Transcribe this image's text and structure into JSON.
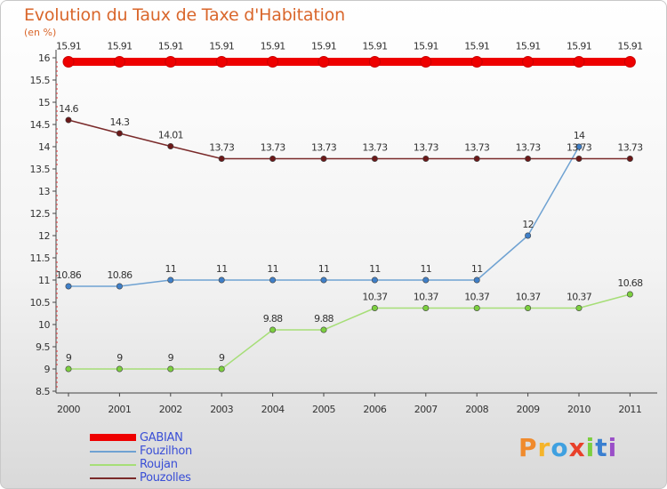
{
  "chart_data": {
    "type": "line",
    "title": "Evolution du Taux de Taxe d'Habitation",
    "unit_label": "(en %)",
    "x": [
      "2000",
      "2001",
      "2002",
      "2003",
      "2004",
      "2005",
      "2006",
      "2007",
      "2008",
      "2009",
      "2010",
      "2011"
    ],
    "ylim": [
      8.5,
      16
    ],
    "yticks": [
      8.5,
      9,
      9.5,
      10,
      10.5,
      11,
      11.5,
      12,
      12.5,
      13,
      13.5,
      14,
      14.5,
      15,
      15.5,
      16
    ],
    "ytick_labels": [
      "8.5",
      "9",
      "9.5",
      "10",
      "10.5",
      "11",
      "11.5",
      "12",
      "12.5",
      "13",
      "13.5",
      "14",
      "14.5",
      "15",
      "15.5",
      "16"
    ],
    "grid": false,
    "legend_position": "bottom-left",
    "series": [
      {
        "name": "GABIAN",
        "color": "#ee0000",
        "thick": true,
        "values": [
          15.91,
          15.91,
          15.91,
          15.91,
          15.91,
          15.91,
          15.91,
          15.91,
          15.91,
          15.91,
          15.91,
          15.91
        ],
        "labels": [
          "15.91",
          "15.91",
          "15.91",
          "15.91",
          "15.91",
          "15.91",
          "15.91",
          "15.91",
          "15.91",
          "15.91",
          "15.91",
          "15.91"
        ]
      },
      {
        "name": "Fouzilhon",
        "color": "#6fa2d2",
        "marker_color": "#3f7fc8",
        "thick": false,
        "values": [
          10.86,
          10.86,
          11,
          11,
          11,
          11,
          11,
          11,
          11,
          12,
          14,
          null
        ],
        "labels": [
          "10.86",
          "10.86",
          "11",
          "11",
          "11",
          "11",
          "11",
          "11",
          "11",
          "12",
          "14",
          ""
        ]
      },
      {
        "name": "Roujan",
        "color": "#a6de77",
        "marker_color": "#7ccf3f",
        "thick": false,
        "values": [
          9,
          9,
          9,
          9,
          9.88,
          9.88,
          10.37,
          10.37,
          10.37,
          10.37,
          10.37,
          10.68
        ],
        "labels": [
          "9",
          "9",
          "9",
          "9",
          "9.88",
          "9.88",
          "10.37",
          "10.37",
          "10.37",
          "10.37",
          "10.37",
          "10.68"
        ]
      },
      {
        "name": "Pouzolles",
        "color": "#7a2a2a",
        "marker_color": "#6b1818",
        "thick": false,
        "values": [
          14.6,
          14.3,
          14.01,
          13.73,
          13.73,
          13.73,
          13.73,
          13.73,
          13.73,
          13.73,
          13.73,
          13.73
        ],
        "labels": [
          "14.6",
          "14.3",
          "14.01",
          "13.73",
          "13.73",
          "13.73",
          "13.73",
          "13.73",
          "13.73",
          "13.73",
          "13.73",
          "13.73"
        ]
      }
    ]
  },
  "legend": {
    "items": [
      {
        "label": "GABIAN"
      },
      {
        "label": "Fouzilhon"
      },
      {
        "label": "Roujan"
      },
      {
        "label": "Pouzolles"
      }
    ]
  },
  "logo": {
    "text": "Proxiti",
    "letters": [
      "P",
      "r",
      "o",
      "x",
      "i",
      "t",
      "i"
    ],
    "letter_colors": [
      "#f08a2c",
      "#f5b42a",
      "#3fa0e0",
      "#e8402a",
      "#7ccf3f",
      "#3a7fd0",
      "#9a4fc8"
    ]
  }
}
